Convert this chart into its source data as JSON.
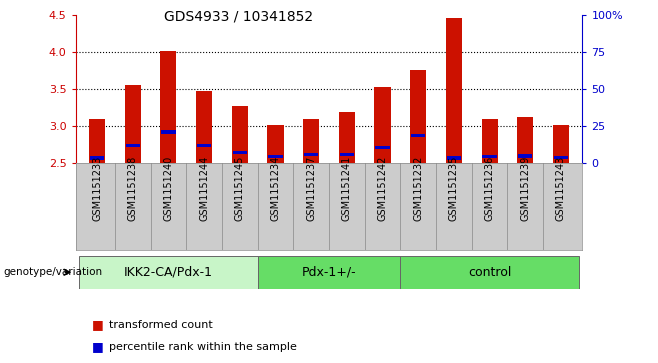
{
  "title": "GDS4933 / 10341852",
  "samples": [
    "GSM1151233",
    "GSM1151238",
    "GSM1151240",
    "GSM1151244",
    "GSM1151245",
    "GSM1151234",
    "GSM1151237",
    "GSM1151241",
    "GSM1151242",
    "GSM1151232",
    "GSM1151235",
    "GSM1151236",
    "GSM1151239",
    "GSM1151243"
  ],
  "red_values": [
    3.1,
    3.55,
    4.01,
    3.47,
    3.27,
    3.02,
    3.09,
    3.19,
    3.52,
    3.75,
    4.45,
    3.09,
    3.12,
    3.02
  ],
  "blue_values": [
    2.57,
    2.74,
    2.92,
    2.74,
    2.65,
    2.59,
    2.62,
    2.62,
    2.71,
    2.87,
    2.57,
    2.59,
    2.6,
    2.58
  ],
  "baseline": 2.5,
  "ylim": [
    2.5,
    4.5
  ],
  "yticks": [
    2.5,
    3.0,
    3.5,
    4.0,
    4.5
  ],
  "right_ylabels": [
    "0",
    "25",
    "50",
    "75",
    "100%"
  ],
  "group_boundaries": [
    [
      0,
      5,
      "IKK2-CA/Pdx-1",
      "#c8f5c8"
    ],
    [
      5,
      9,
      "Pdx-1+/-",
      "#66dd66"
    ],
    [
      9,
      14,
      "control",
      "#66dd66"
    ]
  ],
  "ylabel_left_color": "#cc0000",
  "ylabel_right_color": "#0000cc",
  "bar_color": "#cc1100",
  "blue_marker_color": "#0000cc",
  "tick_label_fontsize": 7,
  "legend_fontsize": 8,
  "group_label_fontsize": 9,
  "genotype_label": "genotype/variation",
  "legend_items": [
    "transformed count",
    "percentile rank within the sample"
  ],
  "bar_width": 0.45,
  "plot_bg_color": "#ffffff",
  "tick_area_bg": "#cccccc"
}
